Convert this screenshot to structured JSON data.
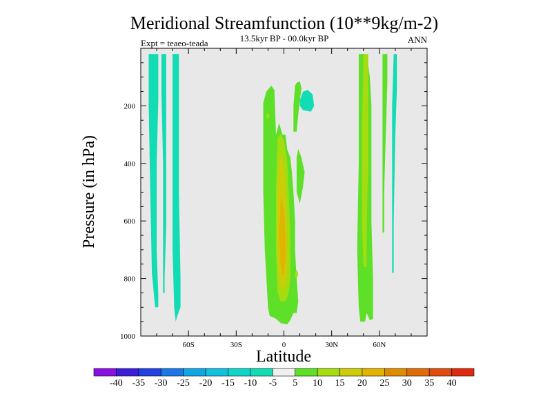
{
  "chart_data": {
    "type": "contour",
    "title": "Meridional Streamfunction (10**9kg/m-2)",
    "subtitle": "13.5kyr BP - 00.0kyr BP",
    "left_label": "Expt = teaeo-teada",
    "right_label": "ANN",
    "xlabel": "Latitude",
    "ylabel": "Pressure (in hPa)",
    "xlim": [
      -90,
      90
    ],
    "ylim": [
      1000,
      0
    ],
    "x_ticks": [
      {
        "value": -60,
        "label": "60S"
      },
      {
        "value": -30,
        "label": "30S"
      },
      {
        "value": 0,
        "label": "0"
      },
      {
        "value": 30,
        "label": "30N"
      },
      {
        "value": 60,
        "label": "60N"
      }
    ],
    "y_ticks": [
      {
        "value": 200,
        "label": "200"
      },
      {
        "value": 400,
        "label": "400"
      },
      {
        "value": 600,
        "label": "600"
      },
      {
        "value": 800,
        "label": "800"
      },
      {
        "value": 1000,
        "label": "1000"
      }
    ],
    "background_fill": "#e8e8e8",
    "colorbar": {
      "labels": [
        "-40",
        "-35",
        "-30",
        "-25",
        "-20",
        "-15",
        "-10",
        "-5",
        "5",
        "10",
        "15",
        "20",
        "25",
        "30",
        "35",
        "40"
      ],
      "colors": [
        "#8a10e0",
        "#3c1ed8",
        "#2040e0",
        "#1a78e6",
        "#10a6e4",
        "#12c0e0",
        "#0ed6c8",
        "#12dcb4",
        "#f0f0f0",
        "#5ee028",
        "#a4dc10",
        "#cccc08",
        "#e0b400",
        "#e08c00",
        "#e06c08",
        "#e04a0c",
        "#e02a10"
      ]
    },
    "regions": [
      {
        "name": "sh-high-lat-band-a",
        "color": "#12dcb4",
        "value": "-5 to -10",
        "points": [
          [
            -85,
            20
          ],
          [
            -79,
            20
          ],
          [
            -79,
            180
          ],
          [
            -80,
            400
          ],
          [
            -80,
            700
          ],
          [
            -79,
            860
          ],
          [
            -79,
            900
          ],
          [
            -81,
            900
          ],
          [
            -83,
            780
          ],
          [
            -84,
            500
          ],
          [
            -85,
            200
          ]
        ]
      },
      {
        "name": "sh-high-lat-band-b",
        "color": "#12dcb4",
        "value": "-5 to -10",
        "points": [
          [
            -77,
            20
          ],
          [
            -74,
            20
          ],
          [
            -74,
            300
          ],
          [
            -74,
            620
          ],
          [
            -75,
            790
          ],
          [
            -75,
            850
          ],
          [
            -76,
            850
          ],
          [
            -76,
            700
          ],
          [
            -76,
            400
          ],
          [
            -77,
            150
          ]
        ]
      },
      {
        "name": "sh-high-lat-band-c",
        "color": "#12dcb4",
        "value": "-5 to -10",
        "points": [
          [
            -70,
            20
          ],
          [
            -66,
            20
          ],
          [
            -66,
            200
          ],
          [
            -66,
            500
          ],
          [
            -65,
            800
          ],
          [
            -65,
            900
          ],
          [
            -67,
            930
          ],
          [
            -68,
            950
          ],
          [
            -69,
            900
          ],
          [
            -70,
            700
          ],
          [
            -70,
            300
          ]
        ]
      },
      {
        "name": "nh-tropical-patch",
        "color": "#12dcb4",
        "value": "-5 to -10",
        "points": [
          [
            10,
            180
          ],
          [
            12,
            150
          ],
          [
            15,
            145
          ],
          [
            18,
            160
          ],
          [
            19,
            200
          ],
          [
            17,
            220
          ],
          [
            12,
            215
          ],
          [
            10,
            200
          ]
        ]
      },
      {
        "name": "nh-high-lat-band",
        "color": "#12dcb4",
        "value": "-5 to -10",
        "points": [
          [
            69,
            20
          ],
          [
            71,
            20
          ],
          [
            71,
            140
          ],
          [
            70,
            300
          ],
          [
            69,
            600
          ],
          [
            69,
            780
          ],
          [
            68,
            780
          ],
          [
            68,
            400
          ],
          [
            68,
            200
          ]
        ]
      },
      {
        "name": "tropical-cell-outer",
        "color": "#5ee028",
        "value": "5 to 10",
        "points": [
          [
            -13,
            190
          ],
          [
            -11,
            150
          ],
          [
            -8,
            130
          ],
          [
            -6,
            145
          ],
          [
            -5,
            300
          ],
          [
            -3,
            260
          ],
          [
            -1,
            300
          ],
          [
            1,
            300
          ],
          [
            2,
            350
          ],
          [
            4,
            380
          ],
          [
            5,
            430
          ],
          [
            6,
            500
          ],
          [
            7,
            600
          ],
          [
            7,
            700
          ],
          [
            8,
            800
          ],
          [
            9,
            880
          ],
          [
            8,
            920
          ],
          [
            6,
            920
          ],
          [
            4,
            945
          ],
          [
            2,
            960
          ],
          [
            -2,
            955
          ],
          [
            -5,
            940
          ],
          [
            -9,
            930
          ],
          [
            -10,
            900
          ],
          [
            -12,
            700
          ],
          [
            -13,
            500
          ],
          [
            -13,
            300
          ]
        ]
      },
      {
        "name": "tropical-cell-north-lobe",
        "color": "#5ee028",
        "value": "5 to 10",
        "points": [
          [
            8,
            120
          ],
          [
            10,
            115
          ],
          [
            11,
            140
          ],
          [
            10,
            180
          ],
          [
            9,
            230
          ],
          [
            8,
            290
          ],
          [
            6,
            290
          ],
          [
            6,
            200
          ],
          [
            7,
            130
          ]
        ]
      },
      {
        "name": "tropical-cell-east-lobe",
        "color": "#5ee028",
        "value": "5 to 10",
        "points": [
          [
            9,
            350
          ],
          [
            11,
            380
          ],
          [
            13,
            430
          ],
          [
            12,
            480
          ],
          [
            11,
            510
          ],
          [
            10,
            540
          ],
          [
            8,
            500
          ],
          [
            8,
            420
          ],
          [
            8,
            380
          ]
        ]
      },
      {
        "name": "nh-midlat-cell-outer",
        "color": "#5ee028",
        "value": "5 to 10",
        "points": [
          [
            47,
            20
          ],
          [
            52,
            20
          ],
          [
            54,
            100
          ],
          [
            55,
            200
          ],
          [
            55,
            400
          ],
          [
            55,
            600
          ],
          [
            56,
            800
          ],
          [
            56,
            940
          ],
          [
            54,
            945
          ],
          [
            52,
            920
          ],
          [
            51,
            950
          ],
          [
            48,
            950
          ],
          [
            47,
            900
          ],
          [
            46,
            700
          ],
          [
            47,
            400
          ],
          [
            47,
            200
          ]
        ]
      },
      {
        "name": "nh-midlat-inner-strip",
        "color": "#5ee028",
        "value": "5 to 10",
        "points": [
          [
            62,
            20
          ],
          [
            65,
            20
          ],
          [
            65,
            120
          ],
          [
            64,
            300
          ],
          [
            63,
            500
          ],
          [
            63,
            640
          ],
          [
            62,
            640
          ],
          [
            62,
            400
          ]
        ]
      },
      {
        "name": "tropical-cell-mid",
        "color": "#a4dc10",
        "value": "10 to 15",
        "points": [
          [
            -4,
            310
          ],
          [
            -2,
            300
          ],
          [
            0,
            320
          ],
          [
            2,
            390
          ],
          [
            3,
            500
          ],
          [
            4,
            650
          ],
          [
            4,
            800
          ],
          [
            3,
            850
          ],
          [
            1,
            880
          ],
          [
            -2,
            880
          ],
          [
            -4,
            850
          ],
          [
            -5,
            700
          ],
          [
            -5,
            500
          ]
        ]
      },
      {
        "name": "nh-midlat-cell-mid",
        "color": "#a4dc10",
        "value": "10 to 15",
        "points": [
          [
            50,
            20
          ],
          [
            53,
            20
          ],
          [
            53,
            150
          ],
          [
            53,
            400
          ],
          [
            52,
            620
          ],
          [
            52,
            760
          ],
          [
            50,
            760
          ],
          [
            49,
            600
          ],
          [
            49,
            300
          ]
        ]
      },
      {
        "name": "tropical-cell-inner",
        "color": "#cccc08",
        "value": "15 to 20",
        "points": [
          [
            -3,
            380
          ],
          [
            -1,
            380
          ],
          [
            0,
            420
          ],
          [
            1,
            500
          ],
          [
            2,
            650
          ],
          [
            2,
            780
          ],
          [
            1,
            820
          ],
          [
            -1,
            840
          ],
          [
            -3,
            810
          ],
          [
            -4,
            700
          ],
          [
            -4,
            500
          ]
        ]
      },
      {
        "name": "tropical-cell-core",
        "color": "#e0b400",
        "value": "20 to 25",
        "points": [
          [
            -2,
            520
          ],
          [
            -1,
            530
          ],
          [
            0,
            560
          ],
          [
            1,
            650
          ],
          [
            1,
            740
          ],
          [
            0,
            780
          ],
          [
            -1,
            790
          ],
          [
            -2,
            760
          ],
          [
            -3,
            650
          ]
        ]
      },
      {
        "name": "tropical-small-spot-a",
        "color": "#a4dc10",
        "value": "10 to 15",
        "points": [
          [
            -11,
            230
          ],
          [
            -10,
            225
          ],
          [
            -9,
            235
          ],
          [
            -10,
            245
          ],
          [
            -11,
            240
          ]
        ]
      },
      {
        "name": "tropical-small-spot-b",
        "color": "#a4dc10",
        "value": "10 to 15",
        "points": [
          [
            7,
            780
          ],
          [
            8,
            770
          ],
          [
            9,
            785
          ],
          [
            8,
            800
          ],
          [
            7,
            795
          ]
        ]
      }
    ]
  }
}
